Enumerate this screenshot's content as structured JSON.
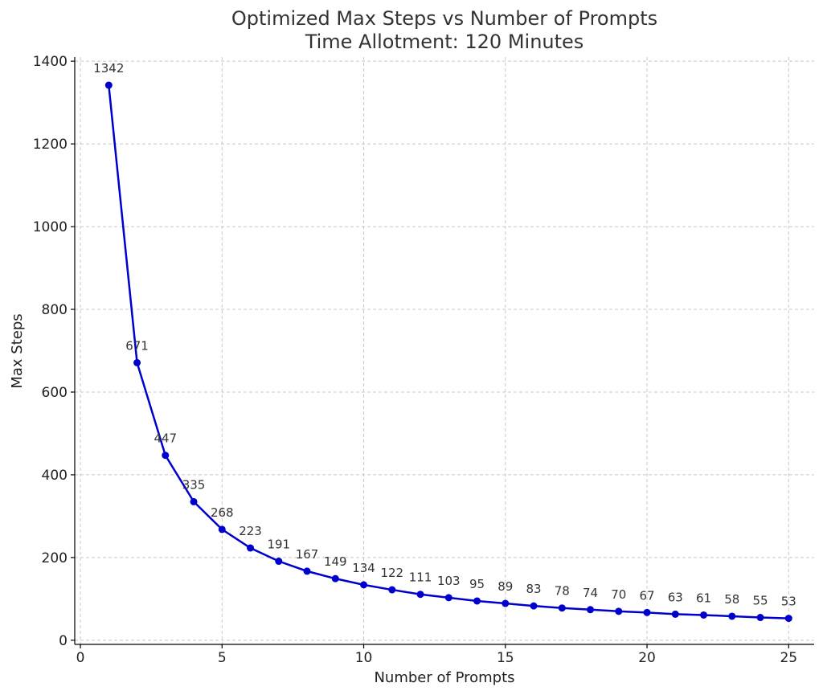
{
  "chart_data": {
    "type": "line",
    "title": "Optimized Max Steps vs Number of Prompts",
    "subtitle": "Time Allotment: 120 Minutes",
    "xlabel": "Number of Prompts",
    "ylabel": "Max Steps",
    "xlim": [
      -0.2,
      25.9
    ],
    "ylim": [
      -10,
      1410
    ],
    "x_ticks": [
      0,
      5,
      10,
      15,
      20,
      25
    ],
    "y_ticks": [
      0,
      200,
      400,
      600,
      800,
      1000,
      1200,
      1400
    ],
    "grid": true,
    "series_color": "#0000cc",
    "x": [
      1,
      2,
      3,
      4,
      5,
      6,
      7,
      8,
      9,
      10,
      11,
      12,
      13,
      14,
      15,
      16,
      17,
      18,
      19,
      20,
      21,
      22,
      23,
      24,
      25
    ],
    "values": [
      1342,
      671,
      447,
      335,
      268,
      223,
      191,
      167,
      149,
      134,
      122,
      111,
      103,
      95,
      89,
      83,
      78,
      74,
      70,
      67,
      63,
      61,
      58,
      55,
      53
    ],
    "data_labels": [
      "1342",
      "671",
      "447",
      "335",
      "268",
      "223",
      "191",
      "167",
      "149",
      "134",
      "122",
      "111",
      "103",
      "95",
      "89",
      "83",
      "78",
      "74",
      "70",
      "67",
      "63",
      "61",
      "58",
      "55",
      "53"
    ]
  }
}
